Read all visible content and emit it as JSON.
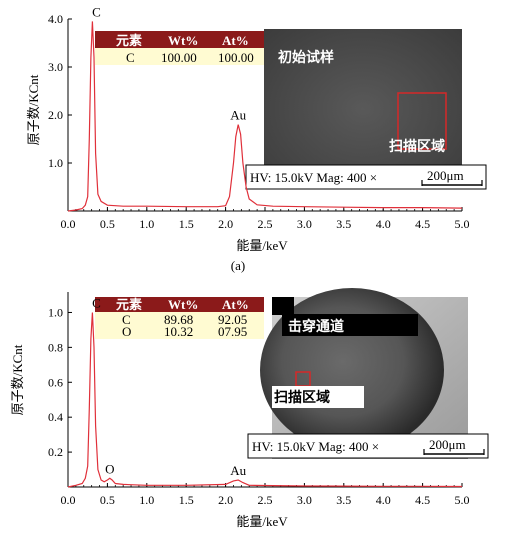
{
  "chart_data": [
    {
      "type": "line",
      "xlabel": "能量/keV",
      "ylabel": "原子数/KCnt",
      "xlim": [
        0.0,
        5.0
      ],
      "ylim": [
        0.0,
        4.0
      ],
      "xticks": [
        "0.0",
        "0.5",
        "1.0",
        "1.5",
        "2.0",
        "2.5",
        "3.0",
        "3.5",
        "4.0",
        "4.5",
        "5.0"
      ],
      "yticks": [
        "1.0",
        "2.0",
        "3.0",
        "4.0"
      ],
      "sublabel": "(a)",
      "series": [
        {
          "color": "#e0303a",
          "x": [
            0.0,
            0.1,
            0.18,
            0.22,
            0.25,
            0.27,
            0.29,
            0.31,
            0.33,
            0.35,
            0.38,
            0.42,
            0.5,
            0.7,
            1.0,
            1.5,
            1.9,
            2.0,
            2.05,
            2.1,
            2.13,
            2.16,
            2.19,
            2.22,
            2.26,
            2.3,
            2.4,
            2.6,
            3.0,
            3.5,
            4.0,
            4.5,
            5.0
          ],
          "y": [
            0.0,
            0.02,
            0.05,
            0.12,
            0.3,
            1.5,
            3.2,
            3.95,
            3.2,
            1.2,
            0.35,
            0.2,
            0.12,
            0.1,
            0.1,
            0.09,
            0.09,
            0.11,
            0.3,
            1.0,
            1.55,
            1.8,
            1.6,
            1.0,
            0.5,
            0.25,
            0.13,
            0.1,
            0.09,
            0.08,
            0.07,
            0.07,
            0.06
          ]
        }
      ],
      "annotations": [
        {
          "text": "C",
          "x": 0.31,
          "y": 3.95
        },
        {
          "text": "Au",
          "x": 2.16,
          "y": 1.8
        }
      ],
      "table": {
        "headers": [
          "元素",
          "Wt%",
          "At%"
        ],
        "rows": [
          [
            "C",
            "100.00",
            "100.00"
          ]
        ]
      },
      "inset": {
        "title": "初始试样",
        "region_label": "扫描区域",
        "hv": "HV: 15.0kV Mag: 400 ×",
        "scale": "200μm"
      }
    },
    {
      "type": "line",
      "xlabel": "能量/keV",
      "ylabel": "原子数/KCnt",
      "xlim": [
        0.0,
        5.0
      ],
      "ylim": [
        0.0,
        1.1
      ],
      "xticks": [
        "0.0",
        "0.5",
        "1.0",
        "1.5",
        "2.0",
        "2.5",
        "3.0",
        "3.5",
        "4.0",
        "4.5",
        "5.0"
      ],
      "yticks": [
        "0.2",
        "0.4",
        "0.6",
        "0.8",
        "1.0"
      ],
      "series": [
        {
          "color": "#e0303a",
          "x": [
            0.0,
            0.1,
            0.18,
            0.22,
            0.25,
            0.27,
            0.29,
            0.31,
            0.33,
            0.35,
            0.38,
            0.42,
            0.46,
            0.5,
            0.53,
            0.56,
            0.6,
            0.7,
            1.0,
            1.5,
            2.0,
            2.1,
            2.16,
            2.22,
            2.3,
            2.6,
            3.0,
            3.5,
            4.0,
            4.5,
            5.0
          ],
          "y": [
            0.0,
            0.01,
            0.02,
            0.05,
            0.12,
            0.45,
            0.85,
            1.0,
            0.8,
            0.35,
            0.1,
            0.04,
            0.03,
            0.04,
            0.05,
            0.04,
            0.02,
            0.015,
            0.01,
            0.01,
            0.015,
            0.035,
            0.04,
            0.025,
            0.01,
            0.008,
            0.006,
            0.005,
            0.004,
            0.004,
            0.003
          ]
        }
      ],
      "annotations": [
        {
          "text": "C",
          "x": 0.31,
          "y": 1.0
        },
        {
          "text": "O",
          "x": 0.53,
          "y": 0.05
        },
        {
          "text": "Au",
          "x": 2.16,
          "y": 0.04
        }
      ],
      "table": {
        "headers": [
          "元素",
          "Wt%",
          "At%"
        ],
        "rows": [
          [
            "C",
            "89.68",
            "92.05"
          ],
          [
            "O",
            "10.32",
            "07.95"
          ]
        ]
      },
      "inset": {
        "title": "击穿通道",
        "region_label": "扫描区域",
        "hv": "HV: 15.0kV Mag: 400 ×",
        "scale": "200μm"
      }
    }
  ]
}
